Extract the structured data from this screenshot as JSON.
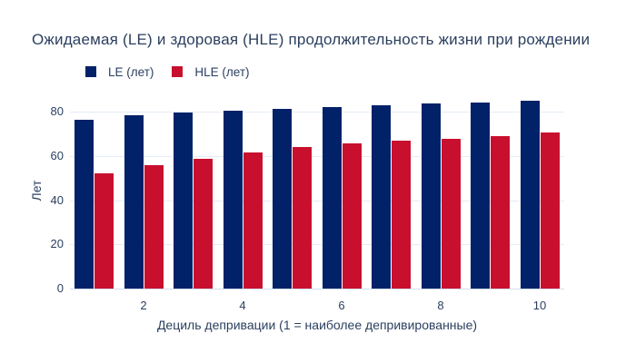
{
  "title": "Ожидаемая (LE) и здоровая (HLE) продолжительность жизни при рождении",
  "colors": {
    "le_bar": "#012169",
    "hle_bar": "#C8102E",
    "text": "#2a3f5f",
    "gridline": "#e5ecf6",
    "axis_line": "#d4deee",
    "background": "#ffffff"
  },
  "legend": {
    "items": [
      {
        "label": "LE (лет)",
        "color": "#012169"
      },
      {
        "label": "HLE (лет)",
        "color": "#C8102E"
      }
    ]
  },
  "chart_data": {
    "type": "bar",
    "title": "Ожидаемая (LE) и здоровая (HLE) продолжительность жизни при рождении",
    "xlabel": "Дециль депривации (1 = наиболее депривированные)",
    "ylabel": "Лет",
    "categories": [
      1,
      2,
      3,
      4,
      5,
      6,
      7,
      8,
      9,
      10
    ],
    "x_ticks": [
      2,
      4,
      6,
      8,
      10
    ],
    "y_ticks": [
      0,
      20,
      40,
      60,
      80
    ],
    "ylim": [
      0,
      89.5
    ],
    "grid": "horizontal",
    "legend_position": "top-left",
    "series": [
      {
        "name": "LE (лет)",
        "color": "#012169",
        "values": [
          76.3,
          78.2,
          79.4,
          80.5,
          81.4,
          82.2,
          82.9,
          83.5,
          84.1,
          84.8
        ]
      },
      {
        "name": "HLE (лет)",
        "color": "#C8102E",
        "values": [
          52.0,
          56.0,
          58.8,
          61.4,
          63.9,
          65.5,
          66.7,
          67.8,
          68.8,
          70.5
        ]
      }
    ]
  }
}
